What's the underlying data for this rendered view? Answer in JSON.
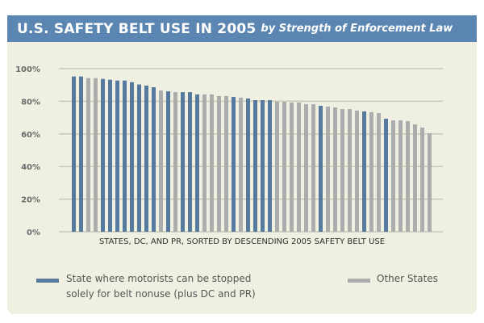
{
  "header": {
    "title": "U.S. SAFETY BELT USE IN 2005",
    "subtitle": "by Strength of Enforcement Law"
  },
  "colors": {
    "header_bg": "#5b86b1",
    "panel_bg": "#f0f0e2",
    "primary_bar": "#5679a0",
    "other_bar": "#acacac",
    "gridline": "#c8c8b8"
  },
  "chart_data": {
    "type": "bar",
    "title": "U.S. SAFETY BELT USE IN 2005 by Strength of Enforcement Law",
    "xlabel": "STATES, DC, AND PR, SORTED BY DESCENDING 2005 SAFETY BELT USE",
    "ylabel": "",
    "ylim": [
      0,
      100
    ],
    "yticks": [
      0,
      20,
      40,
      60,
      80,
      100
    ],
    "ytick_labels": [
      "0%",
      "20%",
      "40%",
      "60%",
      "80%",
      "100%"
    ],
    "grid": true,
    "legend_position": "bottom",
    "series": [
      {
        "name": "State where motorists can be stopped solely for belt nonuse (plus DC and PR)",
        "key": "primary"
      },
      {
        "name": "Other States",
        "key": "other"
      }
    ],
    "values": [
      95.2,
      95.2,
      94.2,
      94.2,
      93.7,
      93.2,
      92.7,
      92.7,
      91.7,
      90.3,
      89.6,
      88.6,
      86.6,
      86.1,
      85.6,
      85.6,
      85.6,
      84.2,
      84.2,
      84.2,
      83.2,
      83.2,
      82.7,
      82.2,
      81.7,
      80.7,
      80.7,
      80.7,
      79.7,
      79.7,
      79.2,
      79.2,
      78.2,
      78.2,
      77.2,
      76.7,
      76.2,
      75.2,
      75.2,
      74.3,
      73.8,
      73.3,
      72.8,
      69.3,
      68.3,
      68.3,
      67.8,
      65.8,
      63.9,
      60.4
    ],
    "groups": [
      "primary",
      "primary",
      "other",
      "other",
      "primary",
      "primary",
      "primary",
      "primary",
      "primary",
      "primary",
      "primary",
      "primary",
      "other",
      "primary",
      "other",
      "primary",
      "primary",
      "primary",
      "other",
      "other",
      "other",
      "other",
      "primary",
      "other",
      "primary",
      "primary",
      "primary",
      "primary",
      "other",
      "other",
      "other",
      "other",
      "other",
      "other",
      "primary",
      "other",
      "other",
      "other",
      "other",
      "other",
      "primary",
      "other",
      "other",
      "primary",
      "other",
      "other",
      "other",
      "other",
      "other",
      "other"
    ]
  },
  "legend": {
    "primary_line1": "State where motorists can be stopped",
    "primary_line2": "solely for belt nonuse (plus DC and PR)",
    "other": "Other States"
  }
}
